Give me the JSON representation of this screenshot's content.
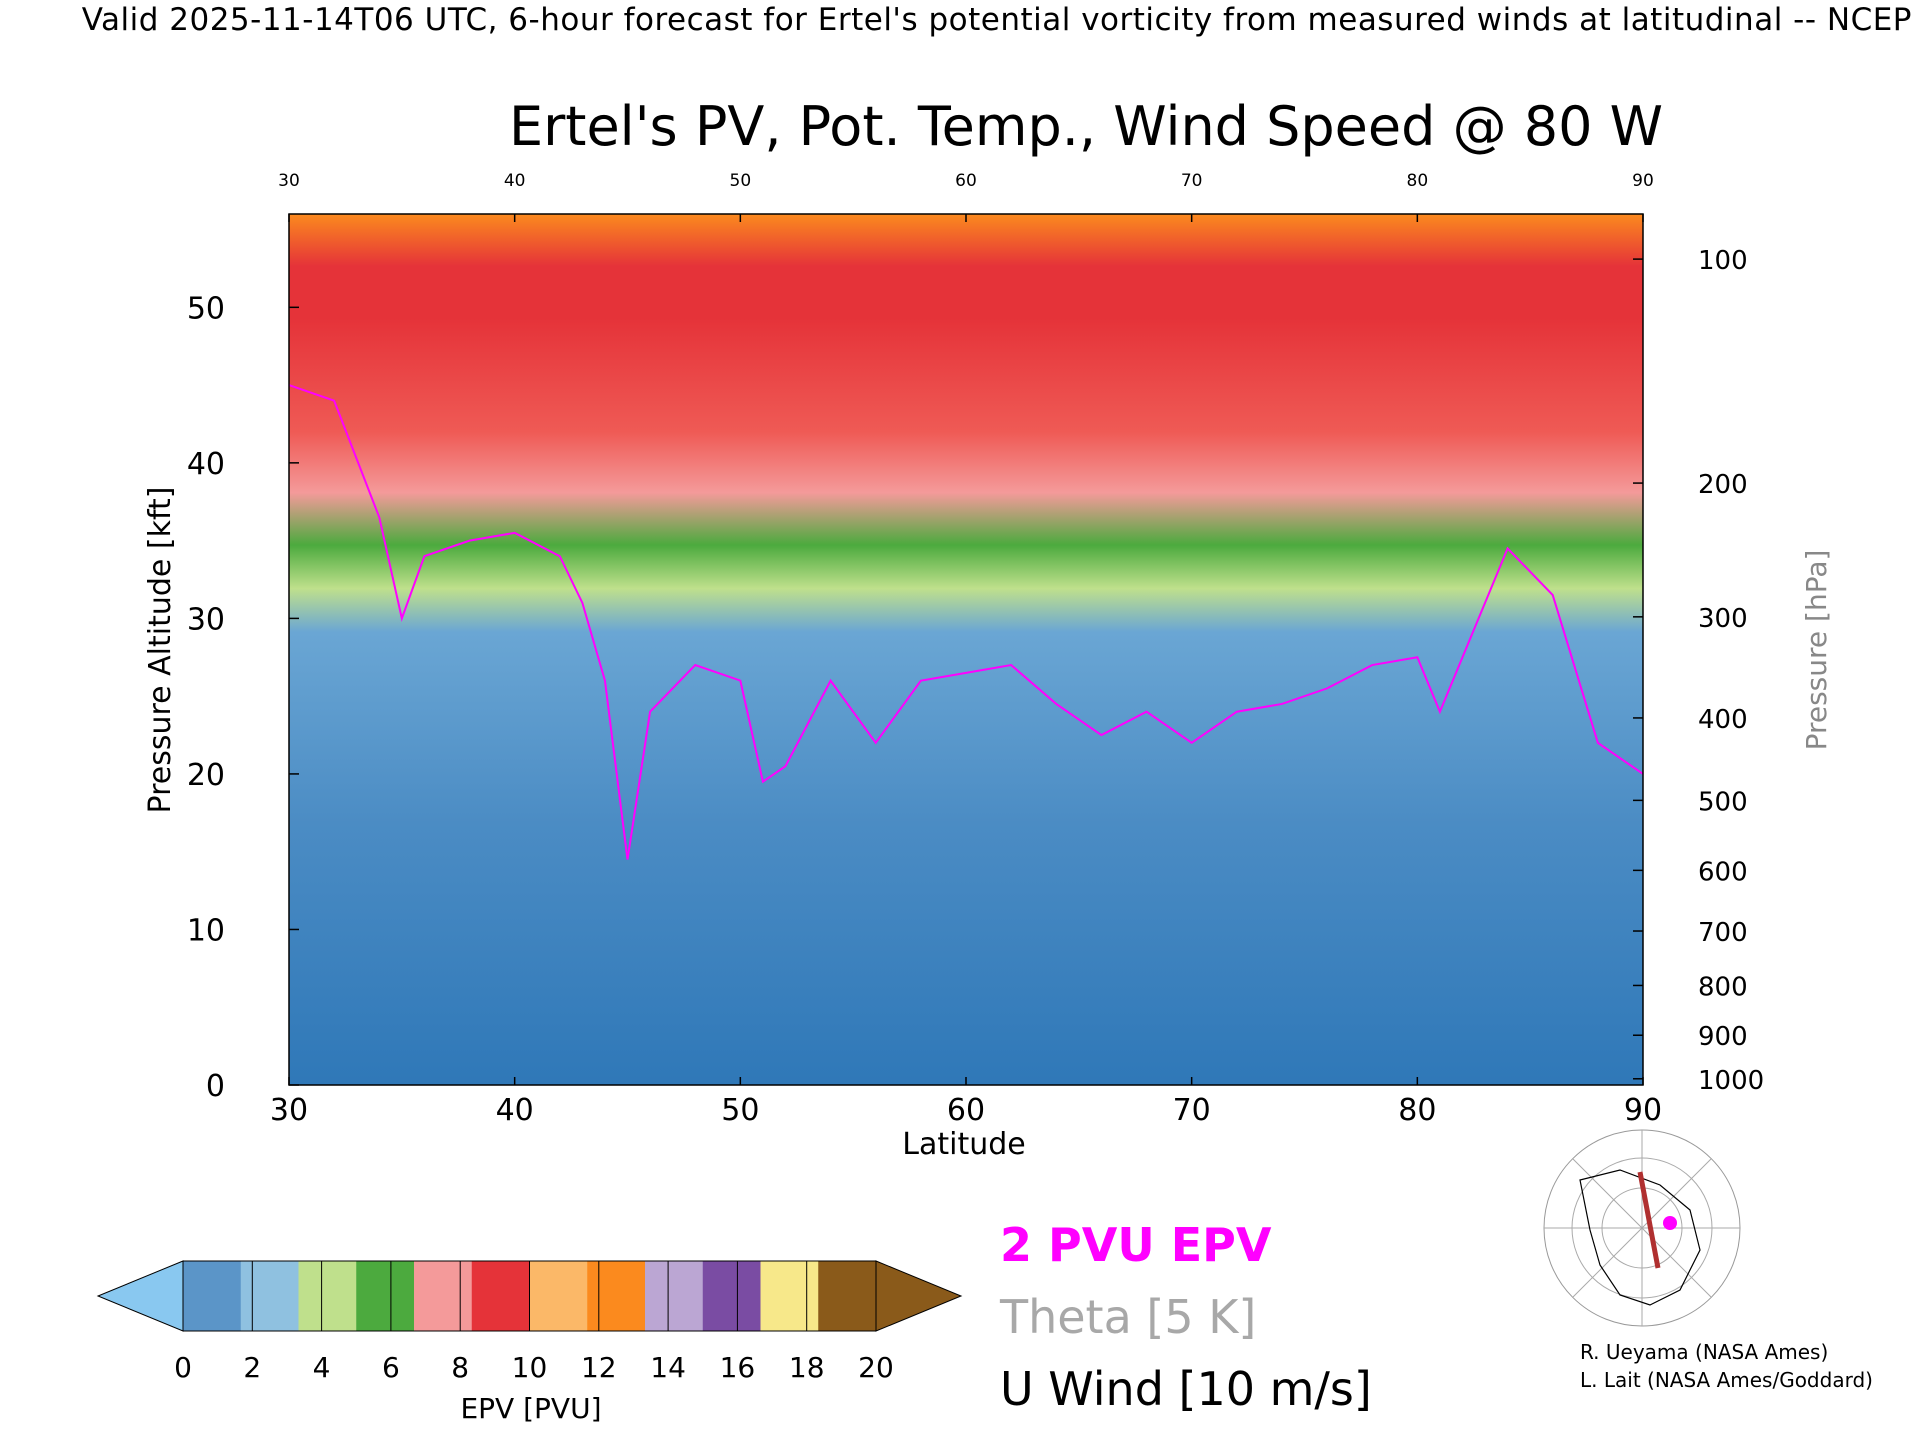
{
  "header": {
    "text": "Valid 2025-11-14T06 UTC, 6-hour forecast for Ertel's potential vorticity from measured winds at latitudinal -- NCEP"
  },
  "chart_data": {
    "type": "heatmap",
    "title": "Ertel's PV, Pot. Temp., Wind Speed @ 80 W",
    "xlabel": "Latitude",
    "ylabel": "Pressure Altitude [kft]",
    "y2label": "Pressure [hPa]",
    "xlim": [
      30,
      90
    ],
    "ylim": [
      0,
      56
    ],
    "x_ticks": [
      30,
      40,
      50,
      60,
      70,
      80,
      90
    ],
    "top_ticks": [
      30,
      40,
      50,
      60,
      70,
      80,
      90
    ],
    "y_ticks": [
      0,
      10,
      20,
      30,
      40,
      50
    ],
    "pressure_ticks": [
      {
        "label": "100",
        "kft": 53.1
      },
      {
        "label": "200",
        "kft": 38.7
      },
      {
        "label": "300",
        "kft": 30.1
      },
      {
        "label": "400",
        "kft": 23.6
      },
      {
        "label": "500",
        "kft": 18.3
      },
      {
        "label": "600",
        "kft": 13.8
      },
      {
        "label": "700",
        "kft": 9.9
      },
      {
        "label": "800",
        "kft": 6.4
      },
      {
        "label": "900",
        "kft": 3.2
      },
      {
        "label": "1000",
        "kft": 0.4
      }
    ],
    "tropopause_kft": [
      {
        "lat": 30,
        "kft": 45.0
      },
      {
        "lat": 32,
        "kft": 44.0
      },
      {
        "lat": 34,
        "kft": 36.5
      },
      {
        "lat": 35,
        "kft": 30.0
      },
      {
        "lat": 36,
        "kft": 34.0
      },
      {
        "lat": 38,
        "kft": 35.0
      },
      {
        "lat": 40,
        "kft": 35.5
      },
      {
        "lat": 42,
        "kft": 34.0
      },
      {
        "lat": 43,
        "kft": 31.0
      },
      {
        "lat": 44,
        "kft": 26.0
      },
      {
        "lat": 45,
        "kft": 14.5
      },
      {
        "lat": 46,
        "kft": 24.0
      },
      {
        "lat": 48,
        "kft": 27.0
      },
      {
        "lat": 50,
        "kft": 26.0
      },
      {
        "lat": 51,
        "kft": 19.5
      },
      {
        "lat": 52,
        "kft": 20.5
      },
      {
        "lat": 54,
        "kft": 26.0
      },
      {
        "lat": 56,
        "kft": 22.0
      },
      {
        "lat": 58,
        "kft": 26.0
      },
      {
        "lat": 60,
        "kft": 26.5
      },
      {
        "lat": 62,
        "kft": 27.0
      },
      {
        "lat": 64,
        "kft": 24.5
      },
      {
        "lat": 66,
        "kft": 22.5
      },
      {
        "lat": 68,
        "kft": 24.0
      },
      {
        "lat": 70,
        "kft": 22.0
      },
      {
        "lat": 72,
        "kft": 24.0
      },
      {
        "lat": 74,
        "kft": 24.5
      },
      {
        "lat": 76,
        "kft": 25.5
      },
      {
        "lat": 78,
        "kft": 27.0
      },
      {
        "lat": 80,
        "kft": 27.5
      },
      {
        "lat": 81,
        "kft": 24.0
      },
      {
        "lat": 83,
        "kft": 31.0
      },
      {
        "lat": 84,
        "kft": 34.5
      },
      {
        "lat": 86,
        "kft": 31.5
      },
      {
        "lat": 88,
        "kft": 22.0
      },
      {
        "lat": 90,
        "kft": 20.0
      }
    ],
    "colorbar": {
      "label": "EPV [PVU]",
      "ticks": [
        "0",
        "2",
        "4",
        "6",
        "8",
        "10",
        "12",
        "14",
        "16",
        "18",
        "20"
      ],
      "colors": [
        "#5b95c8",
        "#8fc1e0",
        "#bfe08c",
        "#4caa3e",
        "#f49a9a",
        "#e53339",
        "#fbb868",
        "#fb8a1e",
        "#bba6d3",
        "#7a4ca3",
        "#f7e88a",
        "#8a5a1a"
      ],
      "under_color": "#89c8f0",
      "over_color": "#8a5a1a"
    },
    "legend": {
      "pv": "2 PVU EPV",
      "theta": "Theta [5 K]",
      "wind": "U Wind [10 m/s]"
    },
    "colors": {
      "pv_contour": "#ff00ff",
      "theta_contour": "#a8a8a8",
      "wind_contour": "#000000",
      "section_line": "#b03030"
    }
  },
  "credits": {
    "line1": "R. Ueyama (NASA Ames)",
    "line2": "L. Lait (NASA Ames/Goddard)"
  }
}
